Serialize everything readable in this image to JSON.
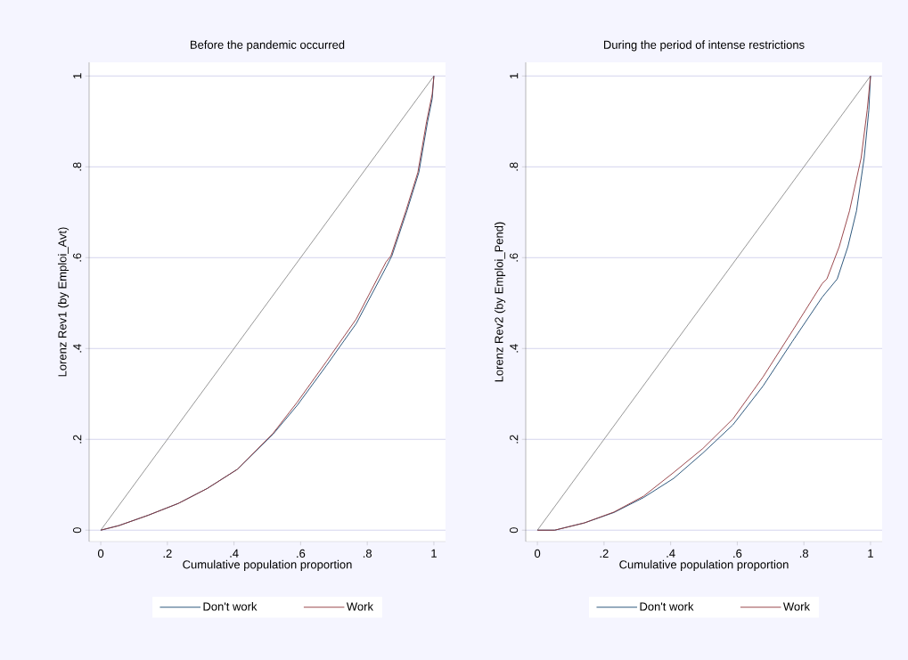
{
  "chart_data": [
    {
      "type": "line",
      "title": "Before the pandemic occurred",
      "xlabel": "Cumulative population proportion",
      "ylabel": "Lorenz Rev1 (by Emploi_Avt)",
      "xlim": [
        -0.035,
        1.035
      ],
      "ylim": [
        -0.025,
        1.03
      ],
      "xticks": [
        0,
        {
          "value": 0.2,
          "label": ".2"
        },
        {
          "value": 0.4,
          "label": ".4"
        },
        {
          "value": 0.6,
          "label": ".6"
        },
        {
          "value": 0.8,
          "label": ".8"
        },
        1
      ],
      "yticks": [
        0,
        {
          "value": 0.2,
          "label": ".2"
        },
        {
          "value": 0.4,
          "label": ".4"
        },
        {
          "value": 0.6,
          "label": ".6"
        },
        {
          "value": 0.8,
          "label": ".8"
        },
        1
      ],
      "grid": "y",
      "legend": "bottom",
      "marker": "none",
      "line_style": "solid",
      "series": [
        {
          "color": "#8c8c8c",
          "x": [
            0,
            1
          ],
          "values": [
            0,
            1
          ]
        },
        {
          "name": "Don't work",
          "color": "#1a476f",
          "x": [
            0,
            0.054,
            0.143,
            0.233,
            0.32,
            0.41,
            0.518,
            0.59,
            0.678,
            0.767,
            0.856,
            0.874,
            0.919,
            0.955,
            0.981,
            0.995,
            1
          ],
          "values": [
            0,
            0.01,
            0.033,
            0.059,
            0.092,
            0.134,
            0.212,
            0.275,
            0.363,
            0.455,
            0.578,
            0.604,
            0.703,
            0.788,
            0.899,
            0.95,
            1
          ]
        },
        {
          "name": "Work",
          "color": "#90353b",
          "x": [
            0,
            0.054,
            0.143,
            0.233,
            0.32,
            0.41,
            0.518,
            0.59,
            0.678,
            0.767,
            0.856,
            0.871,
            0.916,
            0.952,
            0.978,
            0.995,
            1
          ],
          "values": [
            0,
            0.01,
            0.033,
            0.059,
            0.092,
            0.134,
            0.214,
            0.282,
            0.372,
            0.465,
            0.59,
            0.604,
            0.703,
            0.788,
            0.899,
            0.96,
            1
          ]
        }
      ]
    },
    {
      "type": "line",
      "title": "During the period of intense restrictions",
      "xlabel": "Cumulative population proportion",
      "ylabel": "Lorenz Rev2 (by Emploi_Pend)",
      "xlim": [
        -0.035,
        1.035
      ],
      "ylim": [
        -0.025,
        1.03
      ],
      "xticks": [
        0,
        {
          "value": 0.2,
          "label": ".2"
        },
        {
          "value": 0.4,
          "label": ".4"
        },
        {
          "value": 0.6,
          "label": ".6"
        },
        {
          "value": 0.8,
          "label": ".8"
        },
        1
      ],
      "yticks": [
        0,
        {
          "value": 0.2,
          "label": ".2"
        },
        {
          "value": 0.4,
          "label": ".4"
        },
        {
          "value": 0.6,
          "label": ".6"
        },
        {
          "value": 0.8,
          "label": ".8"
        },
        1
      ],
      "grid": "y",
      "legend": "bottom",
      "marker": "none",
      "line_style": "solid",
      "series": [
        {
          "color": "#8c8c8c",
          "x": [
            0,
            1
          ],
          "values": [
            0,
            1
          ]
        },
        {
          "name": "Don't work",
          "color": "#1a476f",
          "x": [
            0,
            0.052,
            0.141,
            0.23,
            0.319,
            0.409,
            0.497,
            0.587,
            0.677,
            0.765,
            0.855,
            0.9,
            0.932,
            0.958,
            0.981,
            0.995,
            1
          ],
          "values": [
            0,
            0,
            0.016,
            0.039,
            0.072,
            0.114,
            0.17,
            0.232,
            0.317,
            0.415,
            0.513,
            0.553,
            0.624,
            0.703,
            0.82,
            0.925,
            1
          ]
        },
        {
          "name": "Work",
          "color": "#90353b",
          "x": [
            0,
            0.052,
            0.141,
            0.23,
            0.319,
            0.409,
            0.497,
            0.587,
            0.677,
            0.765,
            0.855,
            0.869,
            0.906,
            0.937,
            0.972,
            0.99,
            1
          ],
          "values": [
            0,
            0,
            0.016,
            0.04,
            0.075,
            0.127,
            0.18,
            0.245,
            0.337,
            0.438,
            0.543,
            0.553,
            0.624,
            0.703,
            0.82,
            0.925,
            1
          ]
        }
      ]
    }
  ]
}
